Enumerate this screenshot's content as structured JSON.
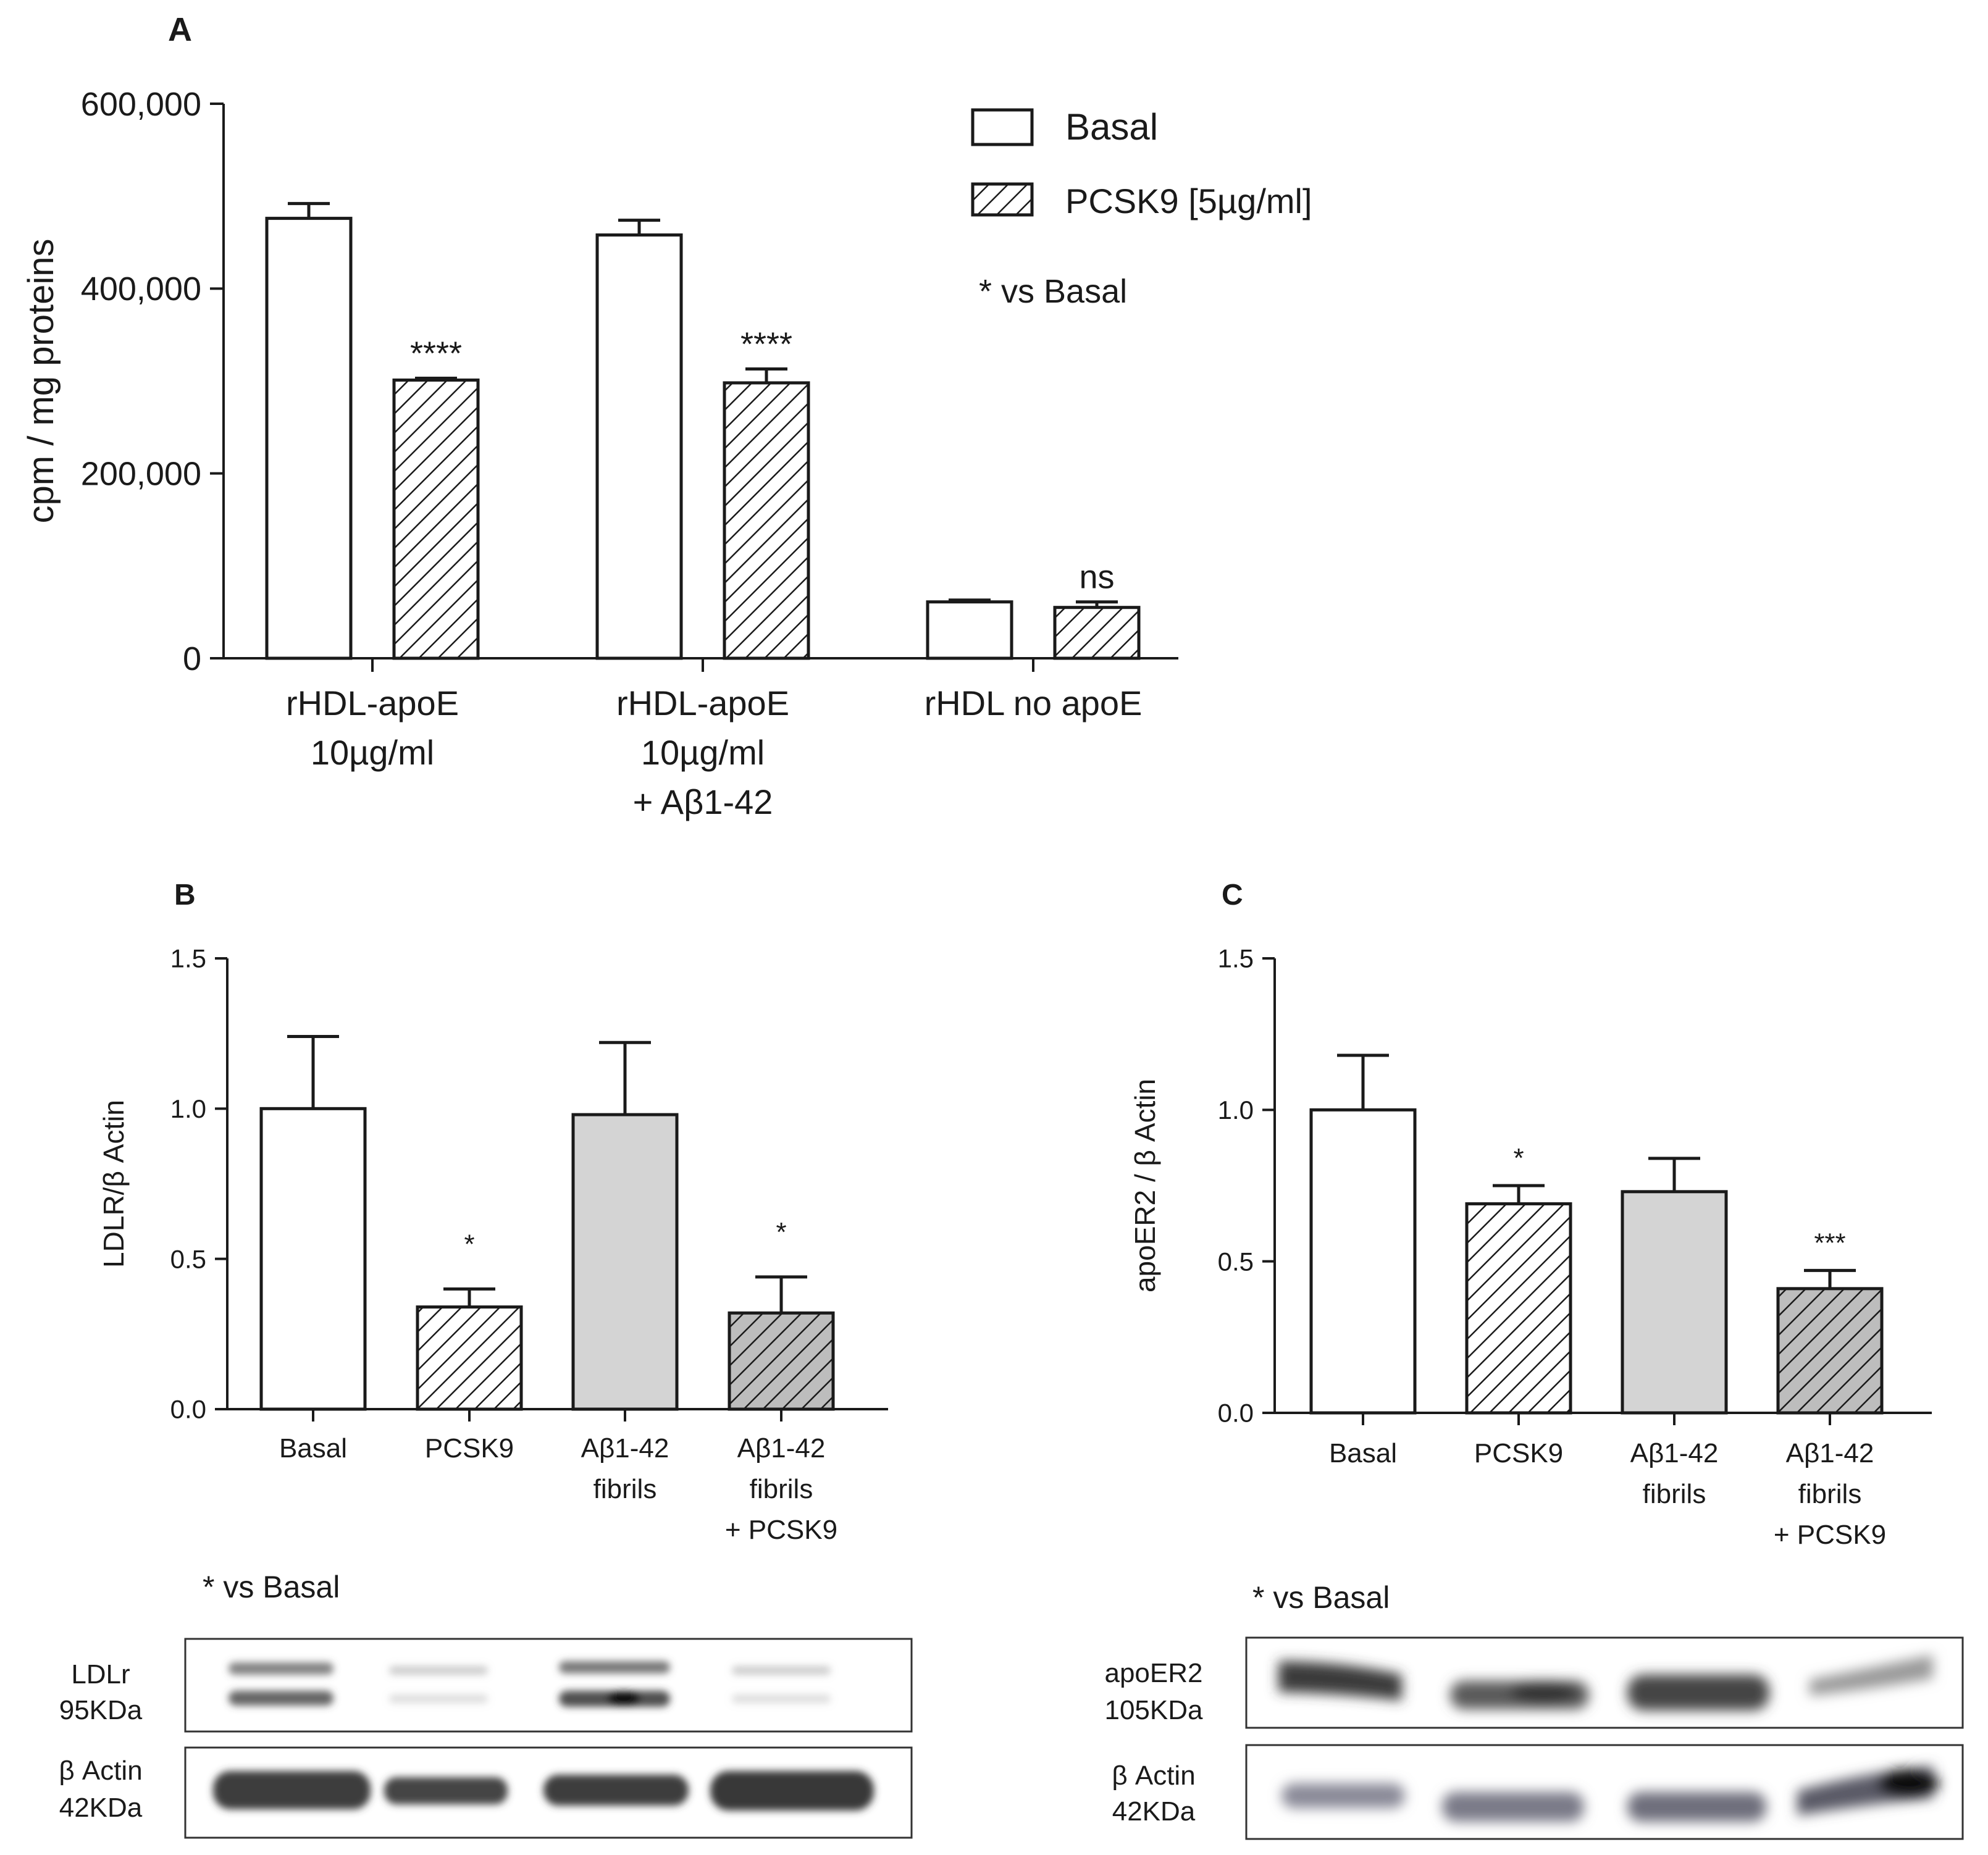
{
  "panels": {
    "A": {
      "letter": "A"
    },
    "B": {
      "letter": "B"
    },
    "C": {
      "letter": "C"
    }
  },
  "legend": {
    "basal": "Basal",
    "pcsk9": "PCSK9 [5µg/ml]",
    "note": "* vs Basal"
  },
  "chart_data": [
    {
      "id": "A",
      "type": "bar",
      "ylabel": "cpm / mg proteins",
      "ylim": [
        0,
        600000
      ],
      "yticks": [
        0,
        200000,
        400000,
        600000
      ],
      "ytick_labels": [
        "0",
        "200,000",
        "400,000",
        "600,000"
      ],
      "categories": [
        [
          "rHDL-apoE",
          "10µg/ml"
        ],
        [
          "rHDL-apoE",
          "10µg/ml",
          "+ Aβ1-42"
        ],
        [
          "rHDL no apoE"
        ]
      ],
      "series": [
        {
          "name": "Basal",
          "fill": "white",
          "values": [
            476000,
            458000,
            61000
          ],
          "errors": [
            16000,
            16000,
            2000
          ]
        },
        {
          "name": "PCSK9 [5µg/ml]",
          "fill": "hatch",
          "values": [
            301000,
            298000,
            55000
          ],
          "errors": [
            2000,
            15000,
            6000
          ]
        }
      ],
      "annotations": [
        "****",
        "****",
        "ns"
      ]
    },
    {
      "id": "B",
      "type": "bar",
      "ylabel": "LDLR/β Actin",
      "ylim": [
        0,
        1.5
      ],
      "yticks": [
        0,
        0.5,
        1.0,
        1.5
      ],
      "ytick_labels": [
        "0.0",
        "0.5",
        "1.0",
        "1.5"
      ],
      "categories": [
        [
          "Basal"
        ],
        [
          "PCSK9"
        ],
        [
          "Aβ1-42",
          "fibrils"
        ],
        [
          "Aβ1-42",
          "fibrils",
          "+ PCSK9"
        ]
      ],
      "values": [
        1.0,
        0.34,
        0.98,
        0.32
      ],
      "errors": [
        0.24,
        0.06,
        0.24,
        0.12
      ],
      "fills": [
        "white",
        "hatch",
        "gray",
        "grayhatch"
      ],
      "annotations": [
        "",
        "*",
        "",
        "*"
      ],
      "note": "* vs Basal"
    },
    {
      "id": "C",
      "type": "bar",
      "ylabel": "apoER2 / β Actin",
      "ylim": [
        0,
        1.5
      ],
      "yticks": [
        0,
        0.5,
        1.0,
        1.5
      ],
      "ytick_labels": [
        "0.0",
        "0.5",
        "1.0",
        "1.5"
      ],
      "categories": [
        [
          "Basal"
        ],
        [
          "PCSK9"
        ],
        [
          "Aβ1-42",
          "fibrils"
        ],
        [
          "Aβ1-42",
          "fibrils",
          "+ PCSK9"
        ]
      ],
      "values": [
        1.0,
        0.69,
        0.73,
        0.41
      ],
      "errors": [
        0.18,
        0.06,
        0.11,
        0.06
      ],
      "fills": [
        "white",
        "hatch",
        "gray",
        "grayhatch"
      ],
      "annotations": [
        "",
        "*",
        "",
        "***"
      ],
      "note": "* vs Basal"
    }
  ],
  "blots": {
    "B": [
      {
        "label": [
          "LDLr",
          "95KDa"
        ]
      },
      {
        "label": [
          "β Actin",
          "42KDa"
        ]
      }
    ],
    "C": [
      {
        "label": [
          "apoER2",
          "105KDa"
        ]
      },
      {
        "label": [
          "β Actin",
          "42KDa"
        ]
      }
    ]
  }
}
